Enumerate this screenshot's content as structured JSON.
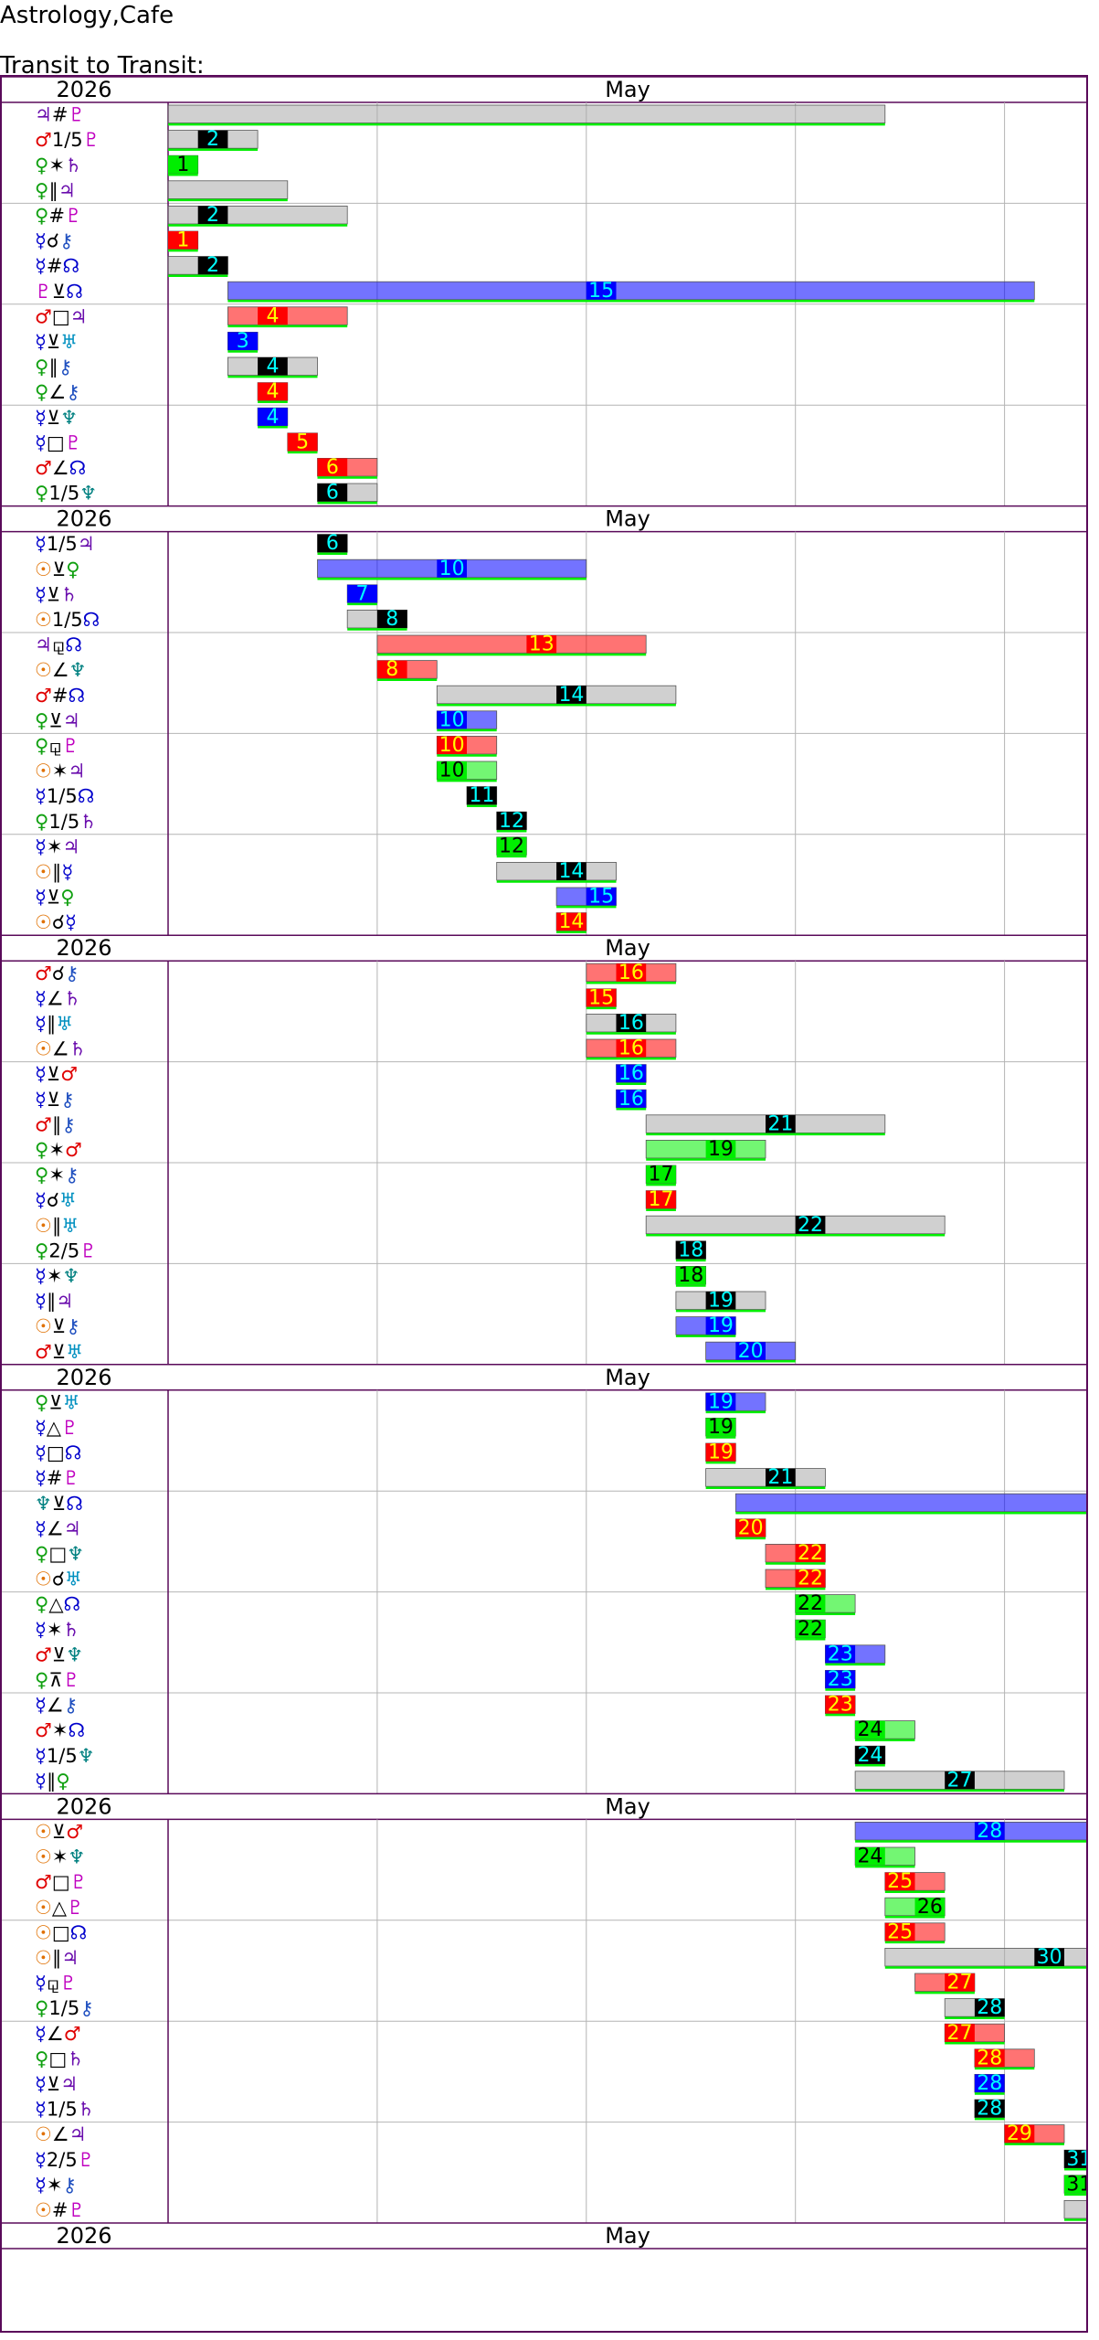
{
  "header": {
    "title": "Astrology,Cafe",
    "subtitle": "Transit to Transit:"
  },
  "colors": {
    "frame": "#5a0a5a",
    "grid": "#b4b4b4",
    "jupiter": "#6a0dad",
    "mars": "#e00000",
    "venus": "#10a010",
    "mercury": "#0000cc",
    "pluto": "#c000c0",
    "sun": "#e07000",
    "neptune": "#008080",
    "uranus": "#0090c0",
    "saturn": "#6a0dad",
    "node": "#0000cc",
    "chiron": "#2050c0",
    "green": "#00ee00",
    "red": "#ff0000",
    "blue": "#0000ff",
    "black": "#000000",
    "gray": "#aaaaaa",
    "text_yellow": "#ffff00",
    "text_cyan": "#00ffff",
    "text_black": "#000000"
  },
  "chart_data": {
    "type": "table",
    "year": "2026",
    "month": "May",
    "row_groups_per_section": 4,
    "events": [
      {
        "label": "♃#♇",
        "day": 0,
        "span": [
          1,
          24
        ],
        "kind": "gray"
      },
      {
        "label": "♂1/5♇",
        "day": 2,
        "span": [
          1,
          3
        ],
        "kind": "gray"
      },
      {
        "label": "♀✶♄",
        "day": 1,
        "span": [
          1,
          1
        ],
        "kind": "green"
      },
      {
        "label": "♀∥♃",
        "day": 0,
        "span": [
          1,
          4
        ],
        "kind": "gray"
      },
      {
        "label": "♀#♇",
        "day": 2,
        "span": [
          1,
          6
        ],
        "kind": "gray"
      },
      {
        "label": "☿☌⚷",
        "day": 1,
        "span": [
          1,
          1
        ],
        "kind": "red"
      },
      {
        "label": "☿#☊",
        "day": 2,
        "span": [
          1,
          2
        ],
        "kind": "gray"
      },
      {
        "label": "♇⊻☊",
        "day": 15,
        "span": [
          3,
          29
        ],
        "kind": "blue"
      },
      {
        "label": "♂□♃",
        "day": 4,
        "span": [
          3,
          6
        ],
        "kind": "red"
      },
      {
        "label": "☿⊻♅",
        "day": 3,
        "span": [
          3,
          3
        ],
        "kind": "blue"
      },
      {
        "label": "♀∥⚷",
        "day": 4,
        "span": [
          3,
          5
        ],
        "kind": "gray"
      },
      {
        "label": "♀∠⚷",
        "day": 4,
        "span": [
          4,
          4
        ],
        "kind": "red"
      },
      {
        "label": "☿⊻♆",
        "day": 4,
        "span": [
          4,
          4
        ],
        "kind": "blue"
      },
      {
        "label": "☿□♇",
        "day": 5,
        "span": [
          5,
          5
        ],
        "kind": "red"
      },
      {
        "label": "♂∠☊",
        "day": 6,
        "span": [
          6,
          7
        ],
        "kind": "red"
      },
      {
        "label": "♀1/5♆",
        "day": 6,
        "span": [
          6,
          7
        ],
        "kind": "gray"
      },
      {
        "label": "☿1/5♃",
        "day": 6,
        "span": [
          6,
          6
        ],
        "kind": "gray"
      },
      {
        "label": "☉⊻♀",
        "day": 10,
        "span": [
          6,
          14
        ],
        "kind": "blue"
      },
      {
        "label": "☿⊻♄",
        "day": 7,
        "span": [
          7,
          7
        ],
        "kind": "blue"
      },
      {
        "label": "☉1/5☊",
        "day": 8,
        "span": [
          7,
          8
        ],
        "kind": "gray"
      },
      {
        "label": "♃⚼☊",
        "day": 13,
        "span": [
          8,
          16
        ],
        "kind": "red"
      },
      {
        "label": "☉∠♆",
        "day": 8,
        "span": [
          8,
          9
        ],
        "kind": "red"
      },
      {
        "label": "♂#☊",
        "day": 14,
        "span": [
          10,
          17
        ],
        "kind": "gray"
      },
      {
        "label": "♀⊻♃",
        "day": 10,
        "span": [
          10,
          11
        ],
        "kind": "blue"
      },
      {
        "label": "♀⚼♇",
        "day": 10,
        "span": [
          10,
          11
        ],
        "kind": "red"
      },
      {
        "label": "☉✶♃",
        "day": 10,
        "span": [
          10,
          11
        ],
        "kind": "green"
      },
      {
        "label": "☿1/5☊",
        "day": 11,
        "span": [
          11,
          11
        ],
        "kind": "gray"
      },
      {
        "label": "♀1/5♄",
        "day": 12,
        "span": [
          12,
          12
        ],
        "kind": "gray"
      },
      {
        "label": "☿✶♃",
        "day": 12,
        "span": [
          12,
          12
        ],
        "kind": "green"
      },
      {
        "label": "☉∥☿",
        "day": 14,
        "span": [
          12,
          15
        ],
        "kind": "gray"
      },
      {
        "label": "☿⊻♀",
        "day": 15,
        "span": [
          14,
          15
        ],
        "kind": "blue"
      },
      {
        "label": "☉☌☿",
        "day": 14,
        "span": [
          14,
          14
        ],
        "kind": "red"
      },
      {
        "label": "♂☌⚷",
        "day": 16,
        "span": [
          15,
          17
        ],
        "kind": "red"
      },
      {
        "label": "☿∠♄",
        "day": 15,
        "span": [
          15,
          15
        ],
        "kind": "red"
      },
      {
        "label": "☿∥♅",
        "day": 16,
        "span": [
          15,
          17
        ],
        "kind": "gray"
      },
      {
        "label": "☉∠♄",
        "day": 16,
        "span": [
          15,
          17
        ],
        "kind": "red"
      },
      {
        "label": "☿⊻♂",
        "day": 16,
        "span": [
          16,
          16
        ],
        "kind": "blue"
      },
      {
        "label": "☿⊻⚷",
        "day": 16,
        "span": [
          16,
          16
        ],
        "kind": "blue"
      },
      {
        "label": "♂∥⚷",
        "day": 21,
        "span": [
          17,
          24
        ],
        "kind": "gray"
      },
      {
        "label": "♀✶♂",
        "day": 19,
        "span": [
          17,
          20
        ],
        "kind": "green"
      },
      {
        "label": "♀✶⚷",
        "day": 17,
        "span": [
          17,
          17
        ],
        "kind": "green"
      },
      {
        "label": "☿☌♅",
        "day": 17,
        "span": [
          17,
          17
        ],
        "kind": "red"
      },
      {
        "label": "☉∥♅",
        "day": 22,
        "span": [
          17,
          26
        ],
        "kind": "gray"
      },
      {
        "label": "♀2/5♇",
        "day": 18,
        "span": [
          18,
          18
        ],
        "kind": "gray"
      },
      {
        "label": "☿✶♆",
        "day": 18,
        "span": [
          18,
          18
        ],
        "kind": "green"
      },
      {
        "label": "☿∥♃",
        "day": 19,
        "span": [
          18,
          20
        ],
        "kind": "gray"
      },
      {
        "label": "☉⊻⚷",
        "day": 19,
        "span": [
          18,
          19
        ],
        "kind": "blue"
      },
      {
        "label": "♂⊻♅",
        "day": 20,
        "span": [
          19,
          21
        ],
        "kind": "blue"
      },
      {
        "label": "♀⊻♅",
        "day": 19,
        "span": [
          19,
          20
        ],
        "kind": "blue"
      },
      {
        "label": "☿△♇",
        "day": 19,
        "span": [
          19,
          19
        ],
        "kind": "green"
      },
      {
        "label": "☿□☊",
        "day": 19,
        "span": [
          19,
          19
        ],
        "kind": "red"
      },
      {
        "label": "☿#♇",
        "day": 21,
        "span": [
          19,
          22
        ],
        "kind": "gray"
      },
      {
        "label": "♆⊻☊",
        "day": 0,
        "span": [
          20,
          31
        ],
        "kind": "blue"
      },
      {
        "label": "☿∠♃",
        "day": 20,
        "span": [
          20,
          20
        ],
        "kind": "red"
      },
      {
        "label": "♀□♆",
        "day": 22,
        "span": [
          21,
          22
        ],
        "kind": "red"
      },
      {
        "label": "☉☌♅",
        "day": 22,
        "span": [
          21,
          22
        ],
        "kind": "red"
      },
      {
        "label": "♀△☊",
        "day": 22,
        "span": [
          22,
          23
        ],
        "kind": "green"
      },
      {
        "label": "☿✶♄",
        "day": 22,
        "span": [
          22,
          22
        ],
        "kind": "green"
      },
      {
        "label": "♂⊻♆",
        "day": 23,
        "span": [
          23,
          24
        ],
        "kind": "blue"
      },
      {
        "label": "♀⊼♇",
        "day": 23,
        "span": [
          23,
          23
        ],
        "kind": "blue"
      },
      {
        "label": "☿∠⚷",
        "day": 23,
        "span": [
          23,
          23
        ],
        "kind": "red"
      },
      {
        "label": "♂✶☊",
        "day": 24,
        "span": [
          24,
          25
        ],
        "kind": "green"
      },
      {
        "label": "☿1/5♆",
        "day": 24,
        "span": [
          24,
          24
        ],
        "kind": "gray"
      },
      {
        "label": "☿∥♀",
        "day": 27,
        "span": [
          24,
          30
        ],
        "kind": "gray"
      },
      {
        "label": "☉⊻♂",
        "day": 28,
        "span": [
          24,
          31
        ],
        "kind": "blue"
      },
      {
        "label": "☉✶♆",
        "day": 24,
        "span": [
          24,
          25
        ],
        "kind": "green"
      },
      {
        "label": "♂□♇",
        "day": 25,
        "span": [
          25,
          26
        ],
        "kind": "red"
      },
      {
        "label": "☉△♇",
        "day": 26,
        "span": [
          25,
          26
        ],
        "kind": "green"
      },
      {
        "label": "☉□☊",
        "day": 25,
        "span": [
          25,
          26
        ],
        "kind": "red"
      },
      {
        "label": "☉∥♃",
        "day": 30,
        "span": [
          25,
          31
        ],
        "kind": "gray"
      },
      {
        "label": "☿⚼♇",
        "day": 27,
        "span": [
          26,
          27
        ],
        "kind": "red"
      },
      {
        "label": "♀1/5⚷",
        "day": 28,
        "span": [
          27,
          28
        ],
        "kind": "gray"
      },
      {
        "label": "☿∠♂",
        "day": 27,
        "span": [
          27,
          28
        ],
        "kind": "red"
      },
      {
        "label": "♀□♄",
        "day": 28,
        "span": [
          28,
          29
        ],
        "kind": "red"
      },
      {
        "label": "☿⊻♃",
        "day": 28,
        "span": [
          28,
          28
        ],
        "kind": "blue"
      },
      {
        "label": "☿1/5♄",
        "day": 28,
        "span": [
          28,
          28
        ],
        "kind": "gray"
      },
      {
        "label": "☉∠♃",
        "day": 29,
        "span": [
          29,
          30
        ],
        "kind": "red"
      },
      {
        "label": "☿2/5♇",
        "day": 31,
        "span": [
          31,
          31
        ],
        "kind": "gray"
      },
      {
        "label": "☿✶⚷",
        "day": 31,
        "span": [
          31,
          31
        ],
        "kind": "green"
      },
      {
        "label": "☉#♇",
        "day": 0,
        "span": [
          31,
          31
        ],
        "kind": "gray"
      }
    ]
  }
}
